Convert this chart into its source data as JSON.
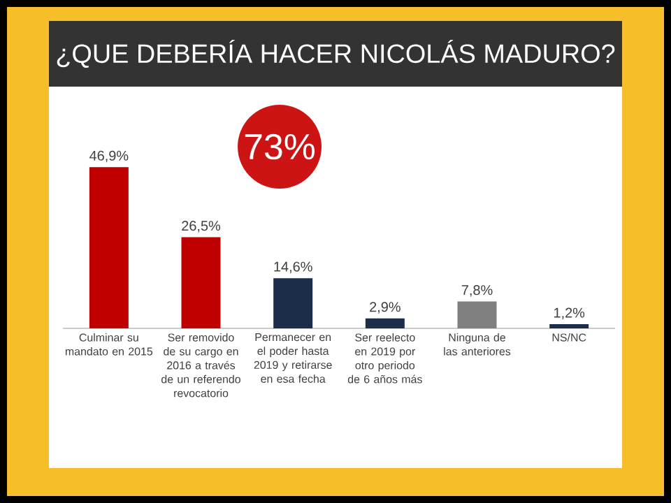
{
  "chart_data": {
    "type": "bar",
    "title": "¿QUE DEBERÍA HACER NICOLÁS MADURO?",
    "categories": [
      "Culminar su mandato en 2015",
      "Ser removido de su cargo en 2016 a través de un referendo revocatorio",
      "Permanecer en el poder hasta 2019 y retirarse en esa fecha",
      "Ser reelecto en 2019 por otro periodo de 6 años más",
      "Ninguna de las anteriores",
      "NS/NC"
    ],
    "values": [
      46.9,
      26.5,
      14.6,
      2.9,
      7.8,
      1.2
    ],
    "value_labels": [
      "46,9%",
      "26,5%",
      "14,6%",
      "2,9%",
      "7,8%",
      "1,2%"
    ],
    "colors": [
      "#c00000",
      "#c00000",
      "#1c2d4a",
      "#1c2d4a",
      "#808080",
      "#1c2d4a"
    ],
    "annotations": [
      "73%"
    ]
  }
}
